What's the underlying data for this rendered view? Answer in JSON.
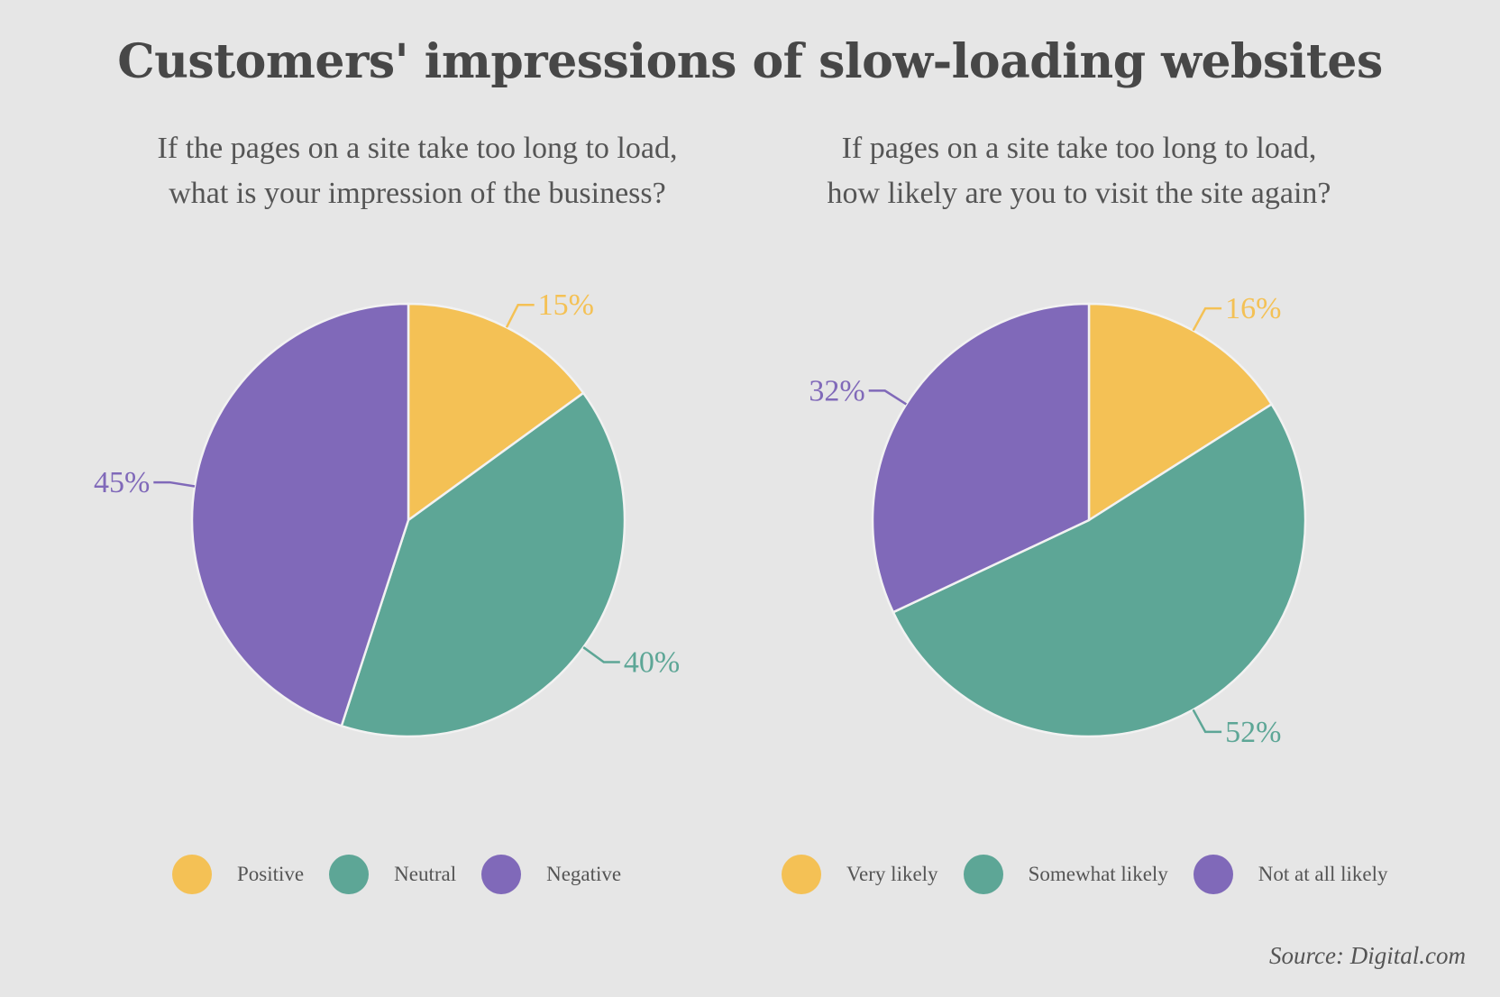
{
  "title": "Customers' impressions of slow-loading websites",
  "source": "Source: Digital.com",
  "chart_data": [
    {
      "type": "pie",
      "title": [
        "If the pages on a site take too long to load,",
        "what is your impression of the business?"
      ],
      "categories": [
        "Positive",
        "Neutral",
        "Negative"
      ],
      "values": [
        15,
        40,
        45
      ],
      "labels": [
        "15%",
        "40%",
        "45%"
      ],
      "colors": [
        "#f4c155",
        "#5da696",
        "#8069b9"
      ],
      "start_angle_deg": 0,
      "direction": "clockwise",
      "legend": "bottom"
    },
    {
      "type": "pie",
      "title": [
        "If pages on a site take too long to load,",
        "how likely are you to visit the site again?"
      ],
      "categories": [
        "Very likely",
        "Somewhat likely",
        "Not at all likely"
      ],
      "values": [
        16,
        52,
        32
      ],
      "labels": [
        "16%",
        "52%",
        "32%"
      ],
      "colors": [
        "#f4c155",
        "#5da696",
        "#8069b9"
      ],
      "start_angle_deg": 0,
      "direction": "clockwise",
      "legend": "bottom"
    }
  ]
}
